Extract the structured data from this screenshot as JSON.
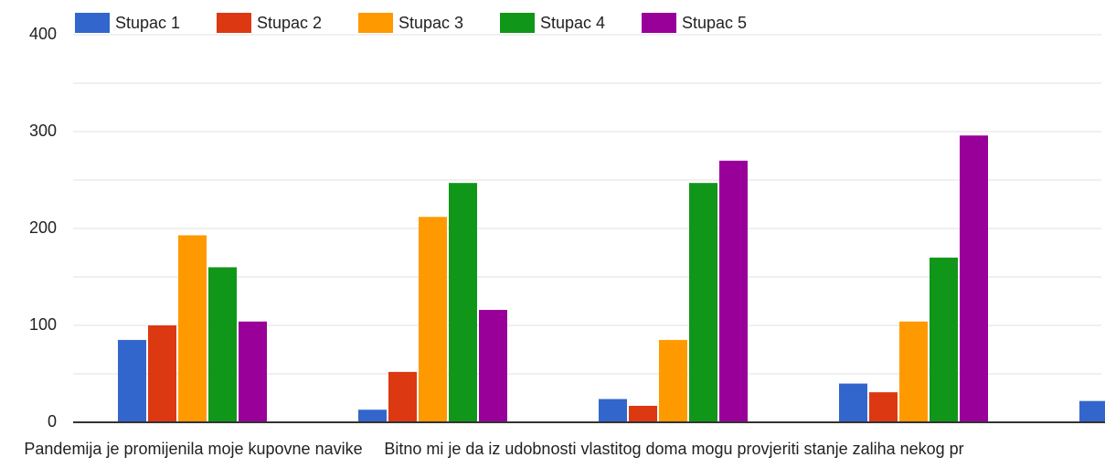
{
  "chart_data": {
    "type": "bar",
    "categories": [
      "Pandemija je promijenila moje kupovne navike",
      null,
      "Bitno mi je da iz udobnosti vlastitog doma mogu provjeriti stanje zaliha nekog pr",
      null,
      null
    ],
    "series": [
      {
        "name": "Stupac 1",
        "color": "#3366cc",
        "values": [
          85,
          13,
          24,
          40,
          22
        ]
      },
      {
        "name": "Stupac 2",
        "color": "#dc3912",
        "values": [
          100,
          52,
          17,
          31,
          null
        ]
      },
      {
        "name": "Stupac 3",
        "color": "#ff9900",
        "values": [
          193,
          212,
          85,
          104,
          null
        ]
      },
      {
        "name": "Stupac 4",
        "color": "#109618",
        "values": [
          160,
          247,
          247,
          170,
          null
        ]
      },
      {
        "name": "Stupac 5",
        "color": "#990099",
        "values": [
          104,
          116,
          270,
          296,
          null
        ]
      }
    ],
    "ylim": [
      0,
      400
    ],
    "yticks": [
      0,
      100,
      200,
      300,
      400
    ],
    "minor_yticks": [
      50,
      150,
      250,
      350
    ],
    "grid": true,
    "legend": "top"
  }
}
